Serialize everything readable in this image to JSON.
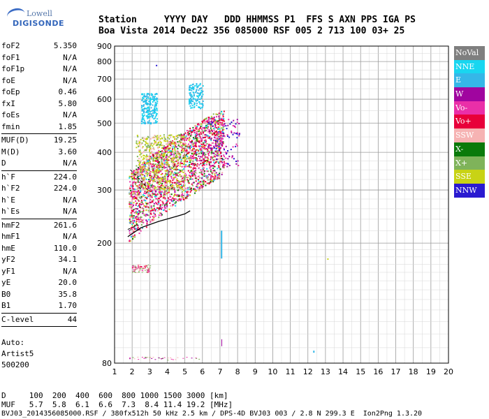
{
  "logo": {
    "line1": "Lowell",
    "line2": "DIGISONDE"
  },
  "header": {
    "line1": "Station     YYYY DAY   DDD HHMMSS P1  FFS S AXN PPS IGA PS",
    "line2": "Boa Vista 2014 Dec22 356 085000 RSF 005 2 713 100 03+ 25"
  },
  "params": {
    "group1": [
      {
        "label": "foF2",
        "value": "5.350"
      },
      {
        "label": "foF1",
        "value": "N/A"
      },
      {
        "label": "foF1p",
        "value": "N/A"
      },
      {
        "label": "foE",
        "value": "N/A"
      },
      {
        "label": "foEp",
        "value": "0.46"
      },
      {
        "label": "fxI",
        "value": "5.80"
      },
      {
        "label": "foEs",
        "value": "N/A"
      },
      {
        "label": "fmin",
        "value": "1.85"
      }
    ],
    "group2": [
      {
        "label": "MUF(D)",
        "value": "19.25"
      },
      {
        "label": "M(D)",
        "value": "3.60"
      },
      {
        "label": "D",
        "value": "N/A"
      }
    ],
    "group3": [
      {
        "label": "h`F",
        "value": "224.0"
      },
      {
        "label": "h`F2",
        "value": "224.0"
      },
      {
        "label": "h`E",
        "value": "N/A"
      },
      {
        "label": "h`Es",
        "value": "N/A"
      }
    ],
    "group4": [
      {
        "label": "hmF2",
        "value": "261.6"
      },
      {
        "label": "hmF1",
        "value": "N/A"
      },
      {
        "label": "hmE",
        "value": "110.0"
      },
      {
        "label": "yF2",
        "value": "34.1"
      },
      {
        "label": "yF1",
        "value": "N/A"
      },
      {
        "label": "yE",
        "value": "20.0"
      },
      {
        "label": "B0",
        "value": "35.8"
      },
      {
        "label": "B1",
        "value": "1.70"
      }
    ],
    "group5": [
      {
        "label": "C-level",
        "value": "44"
      }
    ]
  },
  "autoscaling": {
    "l1": "Auto:",
    "l2": "Artist5",
    "l3": "500200"
  },
  "legend": [
    {
      "label": "NoVal",
      "color": "#7f7f7f"
    },
    {
      "label": "NNE",
      "color": "#19d6f0"
    },
    {
      "label": "E",
      "color": "#35b7e8"
    },
    {
      "label": "W",
      "color": "#a0059f"
    },
    {
      "label": "Vo-",
      "color": "#ea2fa8"
    },
    {
      "label": "Vo+",
      "color": "#e8003a"
    },
    {
      "label": "SSW",
      "color": "#f6b3b3"
    },
    {
      "label": "X-",
      "color": "#0a7a0a"
    },
    {
      "label": "X+",
      "color": "#7fb35a"
    },
    {
      "label": "SSE",
      "color": "#c8d315"
    },
    {
      "label": "NNW",
      "color": "#2a1ad0"
    }
  ],
  "chart_data": {
    "type": "scatter",
    "xlim": [
      1,
      20
    ],
    "ylim": [
      80,
      900
    ],
    "xticks": [
      "1",
      "2",
      "3",
      "4",
      "5",
      "6",
      "7",
      "8",
      "9",
      "10",
      "11",
      "12",
      "13",
      "14",
      "15",
      "16",
      "17",
      "18",
      "19",
      "20"
    ],
    "yticks": [
      "80",
      "200",
      "300",
      "400",
      "500",
      "600",
      "700",
      "800",
      "900"
    ],
    "grid": true,
    "yscale": "log"
  },
  "bottom": {
    "dist": "D     100  200  400  600  800 1000 1500 3000 [km]",
    "muf": "MUF   5.7  5.8  6.1  6.6  7.3  8.4 11.4 19.2 [MHz]",
    "footer": "BVJ03_2014356085000.RSF / 380fx512h 50 kHz 2.5 km / DPS-4D BVJ03 003 / 2.8 N 299.3 E  Ion2Png 1.3.20"
  }
}
